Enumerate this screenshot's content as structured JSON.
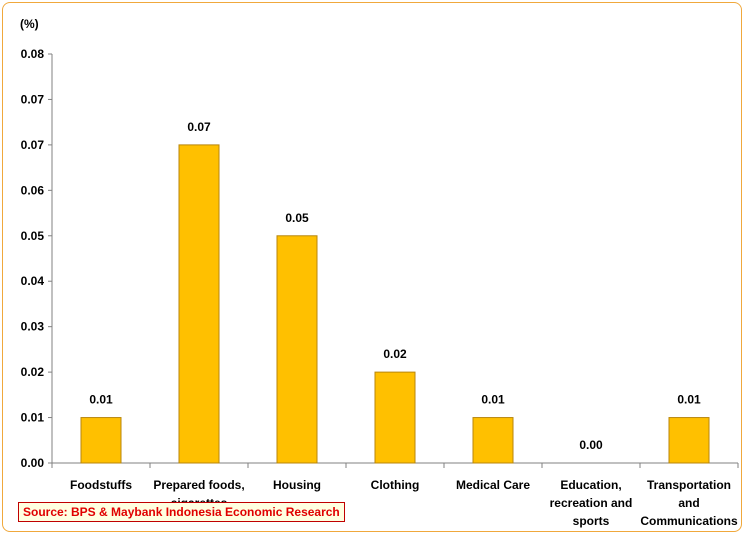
{
  "chart_data": {
    "type": "bar",
    "unit_label": "(%)",
    "categories": [
      [
        "Foodstuffs"
      ],
      [
        "Prepared foods,",
        "cigarettes"
      ],
      [
        "Housing"
      ],
      [
        "Clothing"
      ],
      [
        "Medical Care"
      ],
      [
        "Education,",
        "recreation and",
        "sports"
      ],
      [
        "Transportation",
        "and",
        "Communications"
      ]
    ],
    "values": [
      0.01,
      0.07,
      0.05,
      0.02,
      0.01,
      0.0,
      0.01
    ],
    "data_labels": [
      "0.01",
      "0.07",
      "0.05",
      "0.02",
      "0.01",
      "0.00",
      "0.01"
    ],
    "y_ticks": [
      "0.00",
      "0.01",
      "0.02",
      "0.03",
      "0.04",
      "0.05",
      "0.06",
      "0.07",
      "0.07",
      "0.08"
    ],
    "ylim": [
      0,
      0.09
    ],
    "grid": false,
    "legend": "none",
    "bar_color": "#ffc000",
    "bar_edge": "#b8860b"
  },
  "source": "Source: BPS & Maybank Indonesia Economic Research"
}
